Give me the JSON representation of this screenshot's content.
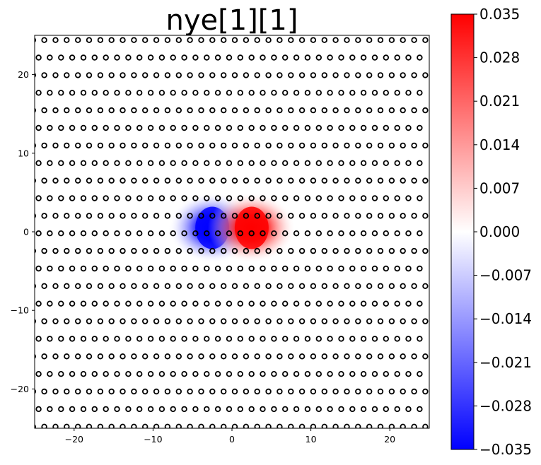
{
  "chart_data": {
    "type": "heatmap",
    "title": "nye[1][1]",
    "xlabel": "",
    "ylabel": "",
    "xlim": [
      -25,
      25
    ],
    "ylim": [
      -25,
      25
    ],
    "x_ticks": [
      -20,
      -10,
      0,
      10,
      20
    ],
    "x_tick_labels": [
      "−20",
      "−10",
      "0",
      "10",
      "20"
    ],
    "y_ticks": [
      -20,
      -10,
      0,
      10,
      20
    ],
    "y_tick_labels": [
      "−20",
      "−10",
      "0",
      "10",
      "20"
    ],
    "colormap": "bwr",
    "colors": {
      "low": "#0000ff",
      "mid": "#ffffff",
      "high": "#ff0000"
    },
    "color_range": [
      -0.035,
      0.035
    ],
    "colorbar_ticks": [
      0.035,
      0.028,
      0.021,
      0.014,
      0.007,
      0.0,
      -0.007,
      -0.014,
      -0.021,
      -0.028,
      -0.035
    ],
    "colorbar_labels": [
      "0.035",
      "0.028",
      "0.021",
      "0.014",
      "0.007",
      "0.000",
      "−0.007",
      "−0.014",
      "−0.021",
      "−0.028",
      "−0.035"
    ],
    "field_features": [
      {
        "kind": "negative-lobe",
        "center": [
          -2.5,
          0.5
        ],
        "peak": -0.035
      },
      {
        "kind": "positive-lobe",
        "center": [
          2.5,
          0.5
        ],
        "peak": 0.035
      }
    ],
    "markers": {
      "style": "open-circle",
      "row_y_range": [
        24.4,
        -24.8
      ],
      "row_count": 23,
      "col_spacing": 1.42,
      "odd_row_offset": 0.7
    }
  }
}
